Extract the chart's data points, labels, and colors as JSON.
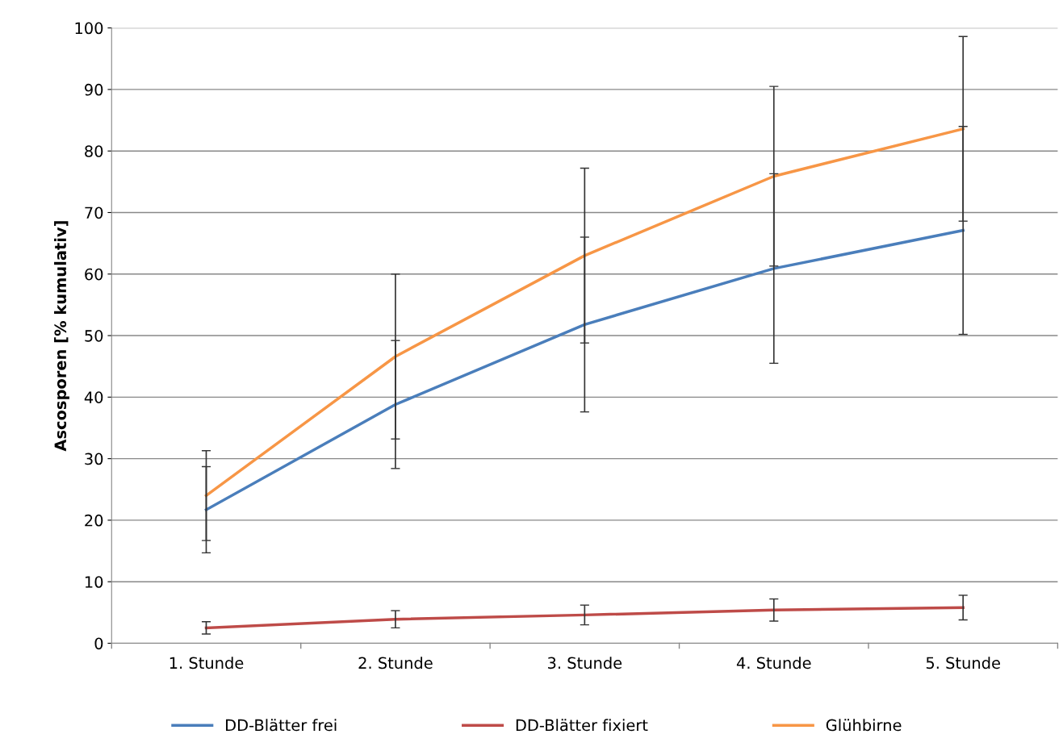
{
  "chart_data": {
    "type": "line",
    "ylabel": "Ascosporen [% kumulativ]",
    "categories": [
      "1. Stunde",
      "2. Stunde",
      "3. Stunde",
      "4. Stunde",
      "5. Stunde"
    ],
    "series": [
      {
        "name": "DD-Blätter frei",
        "color": "#4a7ebb",
        "values": [
          21.7,
          38.8,
          51.8,
          60.9,
          67.1
        ],
        "errors": [
          7,
          10.4,
          14.2,
          15.4,
          16.9
        ]
      },
      {
        "name": "DD-Blätter fixiert",
        "color": "#be4b48",
        "values": [
          2.5,
          3.9,
          4.6,
          5.4,
          5.8
        ],
        "errors": [
          1,
          1.4,
          1.6,
          1.8,
          2
        ]
      },
      {
        "name": "Glühbirne",
        "color": "#f79646",
        "values": [
          24.0,
          46.6,
          63.0,
          75.9,
          83.6
        ],
        "errors": [
          7.3,
          13.4,
          14.2,
          14.6,
          15
        ]
      }
    ],
    "ylim": [
      0,
      100
    ],
    "yticks": [
      0,
      10,
      20,
      30,
      40,
      50,
      60,
      70,
      80,
      90,
      100
    ],
    "grid": "y",
    "legend": "bottom",
    "marker": "none",
    "line_style": "solid"
  }
}
